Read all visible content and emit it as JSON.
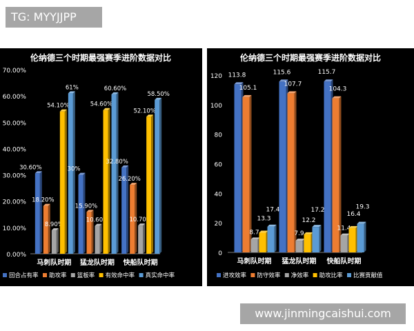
{
  "watermark": {
    "tg": "TG: MYYJJPP",
    "site": "www.jinmingcaishui.com"
  },
  "chart_data": [
    {
      "type": "bar",
      "title": "伦纳德三个时期最强赛季进阶数据对比",
      "categories": [
        "马刺队时期",
        "猛龙队时期",
        "快船队时期"
      ],
      "ylim": [
        0,
        70
      ],
      "yticks": [
        "0.00%",
        "10.00%",
        "20.00%",
        "30.00%",
        "40.00%",
        "50.00%",
        "60.00%",
        "70.00%"
      ],
      "grid": false,
      "legend": "bottom",
      "series": [
        {
          "name": "回合占有率",
          "color": "#4472c4",
          "values": [
            30.6,
            30.0,
            32.8
          ],
          "labels": [
            "30.60%",
            "30%",
            "32.80%"
          ]
        },
        {
          "name": "助攻率",
          "color": "#ed7d31",
          "values": [
            18.2,
            15.9,
            26.2
          ],
          "labels": [
            "18.20%",
            "15.90%",
            "26.20%"
          ]
        },
        {
          "name": "篮板率",
          "color": "#a5a5a5",
          "values": [
            8.9,
            10.6,
            10.7
          ],
          "labels": [
            "8.90%",
            "10.60%",
            "10.70%"
          ]
        },
        {
          "name": "有效命中率",
          "color": "#ffc000",
          "values": [
            54.1,
            54.6,
            52.1
          ],
          "labels": [
            "54.10%",
            "54.60%",
            "52.10%"
          ]
        },
        {
          "name": "真实命中率",
          "color": "#5b9bd5",
          "values": [
            61.0,
            60.6,
            58.5
          ],
          "labels": [
            "61%",
            "60.60%",
            "58.50%"
          ]
        }
      ]
    },
    {
      "type": "bar",
      "title": "伦纳德三个时期最强赛季进阶数据对比",
      "categories": [
        "马刺队时期",
        "猛龙队时期",
        "快船队时期"
      ],
      "ylim": [
        0,
        120
      ],
      "yticks": [
        "0",
        "20",
        "40",
        "60",
        "80",
        "100",
        "120"
      ],
      "grid": false,
      "legend": "bottom",
      "series": [
        {
          "name": "进攻效率",
          "color": "#4472c4",
          "values": [
            113.8,
            115.6,
            115.7
          ],
          "labels": [
            "113.8",
            "115.6",
            "115.7"
          ]
        },
        {
          "name": "防守效率",
          "color": "#ed7d31",
          "values": [
            105.1,
            107.7,
            104.3
          ],
          "labels": [
            "105.1",
            "107.7",
            "104.3"
          ]
        },
        {
          "name": "净效率",
          "color": "#a5a5a5",
          "values": [
            8.7,
            7.9,
            11.4
          ],
          "labels": [
            "8.7",
            "7.9",
            "11.4"
          ]
        },
        {
          "name": "助攻比率",
          "color": "#ffc000",
          "values": [
            13.3,
            12.2,
            16.4
          ],
          "labels": [
            "13.3",
            "12.2",
            "16.4"
          ]
        },
        {
          "name": "比赛贡献值",
          "color": "#5b9bd5",
          "values": [
            17.4,
            17.2,
            19.3
          ],
          "labels": [
            "17.4",
            "17.2",
            "19.3"
          ]
        }
      ]
    }
  ]
}
